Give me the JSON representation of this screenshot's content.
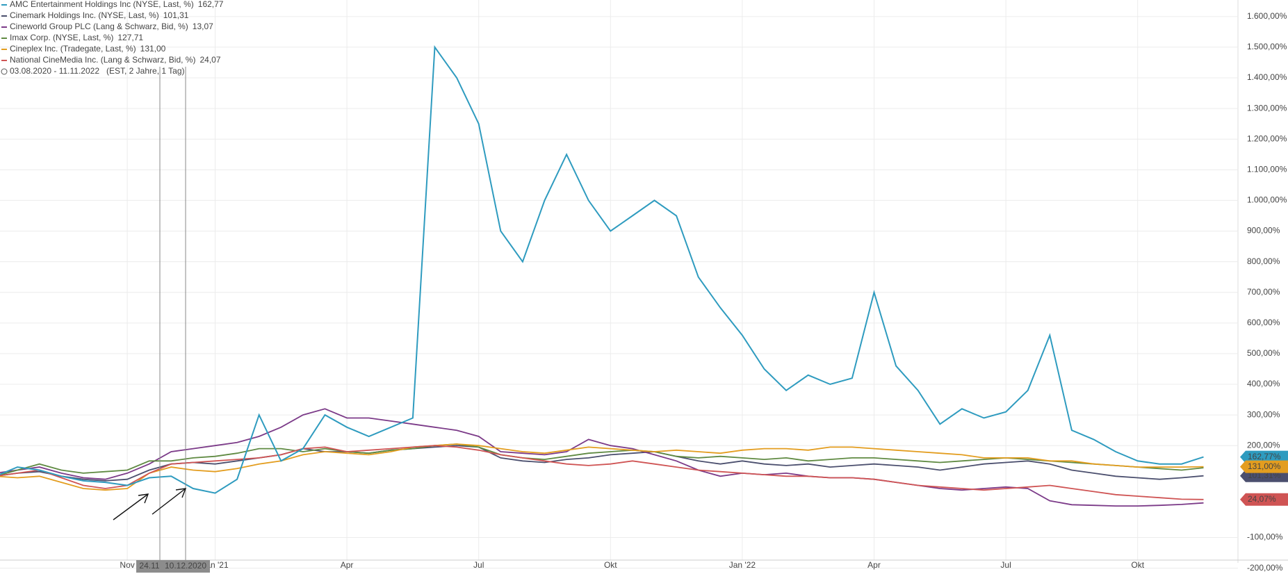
{
  "chart_data": {
    "type": "line",
    "categories": [
      null,
      null,
      null,
      null,
      null,
      null,
      "Nov",
      null,
      null,
      null,
      "Jan '21",
      null,
      null,
      null,
      null,
      null,
      "Apr",
      null,
      null,
      null,
      null,
      null,
      "Jul",
      null,
      null,
      null,
      null,
      null,
      "Okt",
      null,
      null,
      null,
      null,
      null,
      "Jan '22",
      null,
      null,
      null,
      null,
      null,
      "Apr",
      null,
      null,
      null,
      null,
      null,
      "Jul",
      null,
      null,
      null,
      null,
      null,
      "Okt",
      null,
      null,
      null
    ],
    "series": [
      {
        "name": "AMC Entertainment Holdings Inc (NYSE, Last, %)",
        "last_label": "162,77",
        "tag_label": "162,77%",
        "color": "#2e9bbf",
        "values": [
          100,
          130,
          120,
          100,
          85,
          80,
          70,
          95,
          100,
          60,
          45,
          90,
          300,
          150,
          190,
          300,
          260,
          230,
          260,
          290,
          1500,
          1400,
          1250,
          900,
          800,
          1000,
          1150,
          1000,
          900,
          950,
          1000,
          950,
          750,
          650,
          560,
          450,
          380,
          430,
          400,
          420,
          700,
          460,
          380,
          270,
          320,
          290,
          310,
          380,
          560,
          250,
          220,
          180,
          150,
          140,
          140,
          162.77
        ]
      },
      {
        "name": "Cinemark Holdings Inc. (NYSE, Last, %)",
        "last_label": "101,31",
        "tag_label": "101,31%",
        "color": "#4b4f6e",
        "values": [
          100,
          110,
          115,
          100,
          90,
          85,
          90,
          120,
          140,
          145,
          140,
          150,
          160,
          170,
          190,
          180,
          180,
          175,
          185,
          190,
          195,
          200,
          195,
          160,
          150,
          145,
          155,
          160,
          170,
          175,
          180,
          165,
          150,
          140,
          150,
          140,
          135,
          140,
          130,
          135,
          140,
          135,
          130,
          120,
          130,
          140,
          145,
          150,
          140,
          120,
          110,
          100,
          95,
          90,
          95,
          101.31
        ]
      },
      {
        "name": "Cineworld Group PLC (Lang & Schwarz, Bid, %)",
        "last_label": "13,07",
        "color": "#7b3a88",
        "values": [
          110,
          120,
          130,
          110,
          95,
          90,
          110,
          140,
          180,
          190,
          200,
          210,
          230,
          260,
          300,
          320,
          290,
          290,
          280,
          270,
          260,
          250,
          230,
          180,
          175,
          170,
          180,
          220,
          200,
          190,
          170,
          150,
          120,
          100,
          110,
          105,
          110,
          100,
          95,
          95,
          90,
          80,
          70,
          60,
          55,
          60,
          65,
          60,
          20,
          7,
          5,
          3,
          3,
          5,
          8,
          13.07
        ]
      },
      {
        "name": "Imax Corp. (NYSE, Last, %)",
        "last_label": "127,71",
        "color": "#5f8a42",
        "values": [
          100,
          120,
          140,
          120,
          110,
          115,
          120,
          150,
          150,
          160,
          165,
          175,
          190,
          190,
          180,
          190,
          180,
          175,
          185,
          190,
          200,
          205,
          195,
          170,
          160,
          155,
          165,
          175,
          180,
          185,
          180,
          165,
          160,
          165,
          160,
          155,
          160,
          150,
          155,
          160,
          160,
          155,
          150,
          145,
          150,
          155,
          160,
          155,
          150,
          145,
          140,
          135,
          130,
          125,
          120,
          127.71
        ]
      },
      {
        "name": "Cineplex Inc. (Tradegate, Last, %)",
        "last_label": "131,00",
        "tag_label": "131,00%",
        "color": "#e39d1f",
        "values": [
          100,
          95,
          100,
          80,
          60,
          55,
          60,
          110,
          130,
          120,
          115,
          125,
          140,
          150,
          170,
          180,
          175,
          170,
          180,
          195,
          200,
          205,
          200,
          190,
          180,
          175,
          185,
          195,
          190,
          185,
          180,
          185,
          180,
          175,
          185,
          190,
          190,
          185,
          195,
          195,
          190,
          185,
          180,
          175,
          170,
          160,
          160,
          160,
          150,
          150,
          140,
          135,
          130,
          130,
          130,
          131
        ]
      },
      {
        "name": "National CineMedia Inc. (Lang & Schwarz, Bid, %)",
        "last_label": "24,07",
        "tag_label": "24,07%",
        "color": "#cf5454",
        "values": [
          100,
          110,
          120,
          95,
          70,
          60,
          70,
          110,
          140,
          145,
          150,
          155,
          160,
          170,
          190,
          195,
          180,
          185,
          190,
          195,
          200,
          195,
          185,
          170,
          160,
          150,
          140,
          135,
          140,
          150,
          140,
          130,
          120,
          115,
          110,
          105,
          100,
          100,
          95,
          95,
          90,
          80,
          70,
          65,
          60,
          55,
          60,
          65,
          70,
          60,
          50,
          40,
          35,
          30,
          25,
          24.07
        ]
      }
    ],
    "range_text": "03.08.2020 - 11.11.2022",
    "range_detail": "(EST, 2 Jahre, 1 Tag)",
    "crosshair_labels": [
      "24.11",
      "10.12.2020"
    ],
    "ylim": [
      -219,
      1654
    ],
    "yticks": [
      {
        "value": -200,
        "label": "-200,00%"
      },
      {
        "value": -100,
        "label": "-100,00%"
      },
      {
        "value": 200,
        "label": "200,00%"
      },
      {
        "value": 300,
        "label": "300,00%"
      },
      {
        "value": 400,
        "label": "400,00%"
      },
      {
        "value": 500,
        "label": "500,00%"
      },
      {
        "value": 600,
        "label": "600,00%"
      },
      {
        "value": 700,
        "label": "700,00%"
      },
      {
        "value": 800,
        "label": "800,00%"
      },
      {
        "value": 900,
        "label": "900,00%"
      },
      {
        "value": 1000,
        "label": "1.000,00%"
      },
      {
        "value": 1100,
        "label": "1.100,00%"
      },
      {
        "value": 1200,
        "label": "1.200,00%"
      },
      {
        "value": 1300,
        "label": "1.300,00%"
      },
      {
        "value": 1400,
        "label": "1.400,00%"
      },
      {
        "value": 1500,
        "label": "1.500,00%"
      },
      {
        "value": 1600,
        "label": "1.600,00%"
      }
    ],
    "grid": true
  }
}
